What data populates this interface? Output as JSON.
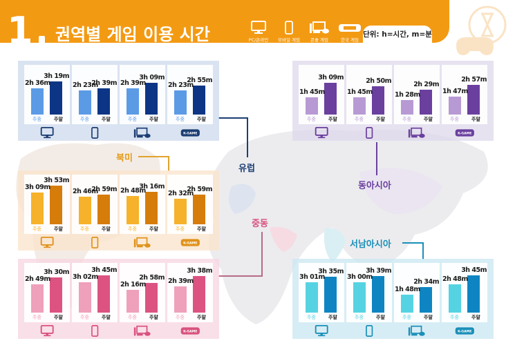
{
  "header": {
    "number": "1",
    "title": "권역별 게임 이용 시간",
    "unit": "단위: h=시간, m=분",
    "legend": [
      {
        "icon": "monitor-icon",
        "label": "PC/온라인"
      },
      {
        "icon": "smartphone-icon",
        "label": "모바일 게임"
      },
      {
        "icon": "console-icon",
        "label": "콘솔 게임"
      },
      {
        "icon": "k-game-icon",
        "label": "한국 게임"
      }
    ]
  },
  "labels": {
    "weekday": "주중",
    "weekend": "주말",
    "kgame": "K-GAME"
  },
  "regions": {
    "europe": {
      "name": "유럽"
    },
    "east_asia": {
      "name": "동아시아"
    },
    "north_america": {
      "name": "북미"
    },
    "middle_east": {
      "name": "중동"
    },
    "southwest_asia": {
      "name": "서남아시아"
    }
  },
  "chart_data": {
    "type": "bar",
    "title": "권역별 게임 이용 시간",
    "unit": "h=시간, m=분",
    "categories": [
      "PC/온라인",
      "모바일 게임",
      "콘솔 게임",
      "한국 게임"
    ],
    "series_names": [
      "주중",
      "주말"
    ],
    "regions": [
      {
        "region": "유럽",
        "colors": {
          "weekday": "#5b9be6",
          "weekend": "#0d3585"
        },
        "weekday": [
          "2h 36m",
          "2h 23m",
          "2h 39m",
          "2h 23m"
        ],
        "weekend": [
          "3h 19m",
          "2h 39m",
          "3h 09m",
          "2h 55m"
        ],
        "weekday_min": [
          156,
          143,
          159,
          143
        ],
        "weekend_min": [
          199,
          159,
          189,
          175
        ]
      },
      {
        "region": "동아시아",
        "colors": {
          "weekday": "#b79ad4",
          "weekend": "#6a3f9e"
        },
        "weekday": [
          "1h 45m",
          "1h 45m",
          "1h 28m",
          "1h 47m"
        ],
        "weekend": [
          "3h 09m",
          "2h 50m",
          "2h 29m",
          "2h 57m"
        ],
        "weekday_min": [
          105,
          105,
          88,
          107
        ],
        "weekend_min": [
          189,
          170,
          149,
          177
        ]
      },
      {
        "region": "북미",
        "colors": {
          "weekday": "#f6b22b",
          "weekend": "#d67c0b"
        },
        "weekday": [
          "3h 09m",
          "2h 46m",
          "2h 48m",
          "2h 32m"
        ],
        "weekend": [
          "3h 53m",
          "2h 59m",
          "3h 16m",
          "2h 59m"
        ],
        "weekday_min": [
          189,
          166,
          168,
          152
        ],
        "weekend_min": [
          233,
          179,
          196,
          179
        ]
      },
      {
        "region": "중동",
        "colors": {
          "weekday": "#efa0bb",
          "weekend": "#dc5382"
        },
        "weekday": [
          "2h 49m",
          "3h 02m",
          "2h 16m",
          "2h 39m"
        ],
        "weekend": [
          "3h 30m",
          "3h 45m",
          "2h 58m",
          "3h 38m"
        ],
        "weekday_min": [
          169,
          182,
          136,
          159
        ],
        "weekend_min": [
          210,
          225,
          178,
          218
        ]
      },
      {
        "region": "서남아시아",
        "colors": {
          "weekday": "#56d3e2",
          "weekend": "#0e85c2"
        },
        "weekday": [
          "3h 01m",
          "3h 00m",
          "1h 48m",
          "2h 48m"
        ],
        "weekend": [
          "3h 35m",
          "3h 39m",
          "2h 34m",
          "3h 45m"
        ],
        "weekday_min": [
          181,
          180,
          108,
          168
        ],
        "weekend_min": [
          215,
          219,
          154,
          225
        ]
      }
    ]
  }
}
